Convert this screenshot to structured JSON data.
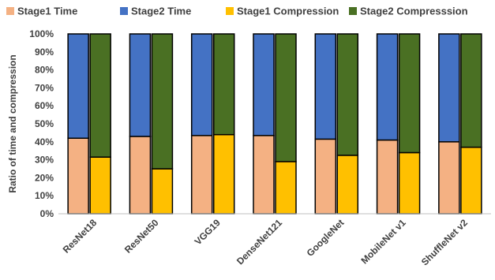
{
  "chart_data": {
    "type": "bar",
    "subtype": "stacked-percent-grouped",
    "title": "",
    "xlabel": "",
    "ylabel": "Ratio of time and compression",
    "ylim": [
      0,
      100
    ],
    "yticks": [
      "0%",
      "10%",
      "20%",
      "30%",
      "40%",
      "50%",
      "60%",
      "70%",
      "80%",
      "90%",
      "100%"
    ],
    "grid": false,
    "legend_position": "top",
    "categories": [
      "ResNet18",
      "ResNet50",
      "VGG19",
      "DenseNet121",
      "GoogleNet",
      "MobileNet v1",
      "ShuffleNet v2"
    ],
    "series": [
      {
        "name": "Stage1 Time",
        "stack": "time",
        "color": "#F4B183",
        "values": [
          42,
          43,
          43.5,
          43.5,
          41.5,
          41,
          40
        ]
      },
      {
        "name": "Stage2 Time",
        "stack": "time",
        "color": "#4472C4",
        "values": [
          58,
          57,
          56.5,
          56.5,
          58.5,
          59,
          60
        ]
      },
      {
        "name": "Stage1 Compression",
        "stack": "compression",
        "color": "#FFC000",
        "values": [
          31.5,
          25,
          44,
          29,
          32.5,
          34,
          37
        ]
      },
      {
        "name": "Stage2 Compresssion",
        "stack": "compression",
        "color": "#4A7023",
        "values": [
          68.5,
          75,
          56,
          71,
          67.5,
          66,
          63
        ]
      }
    ]
  }
}
